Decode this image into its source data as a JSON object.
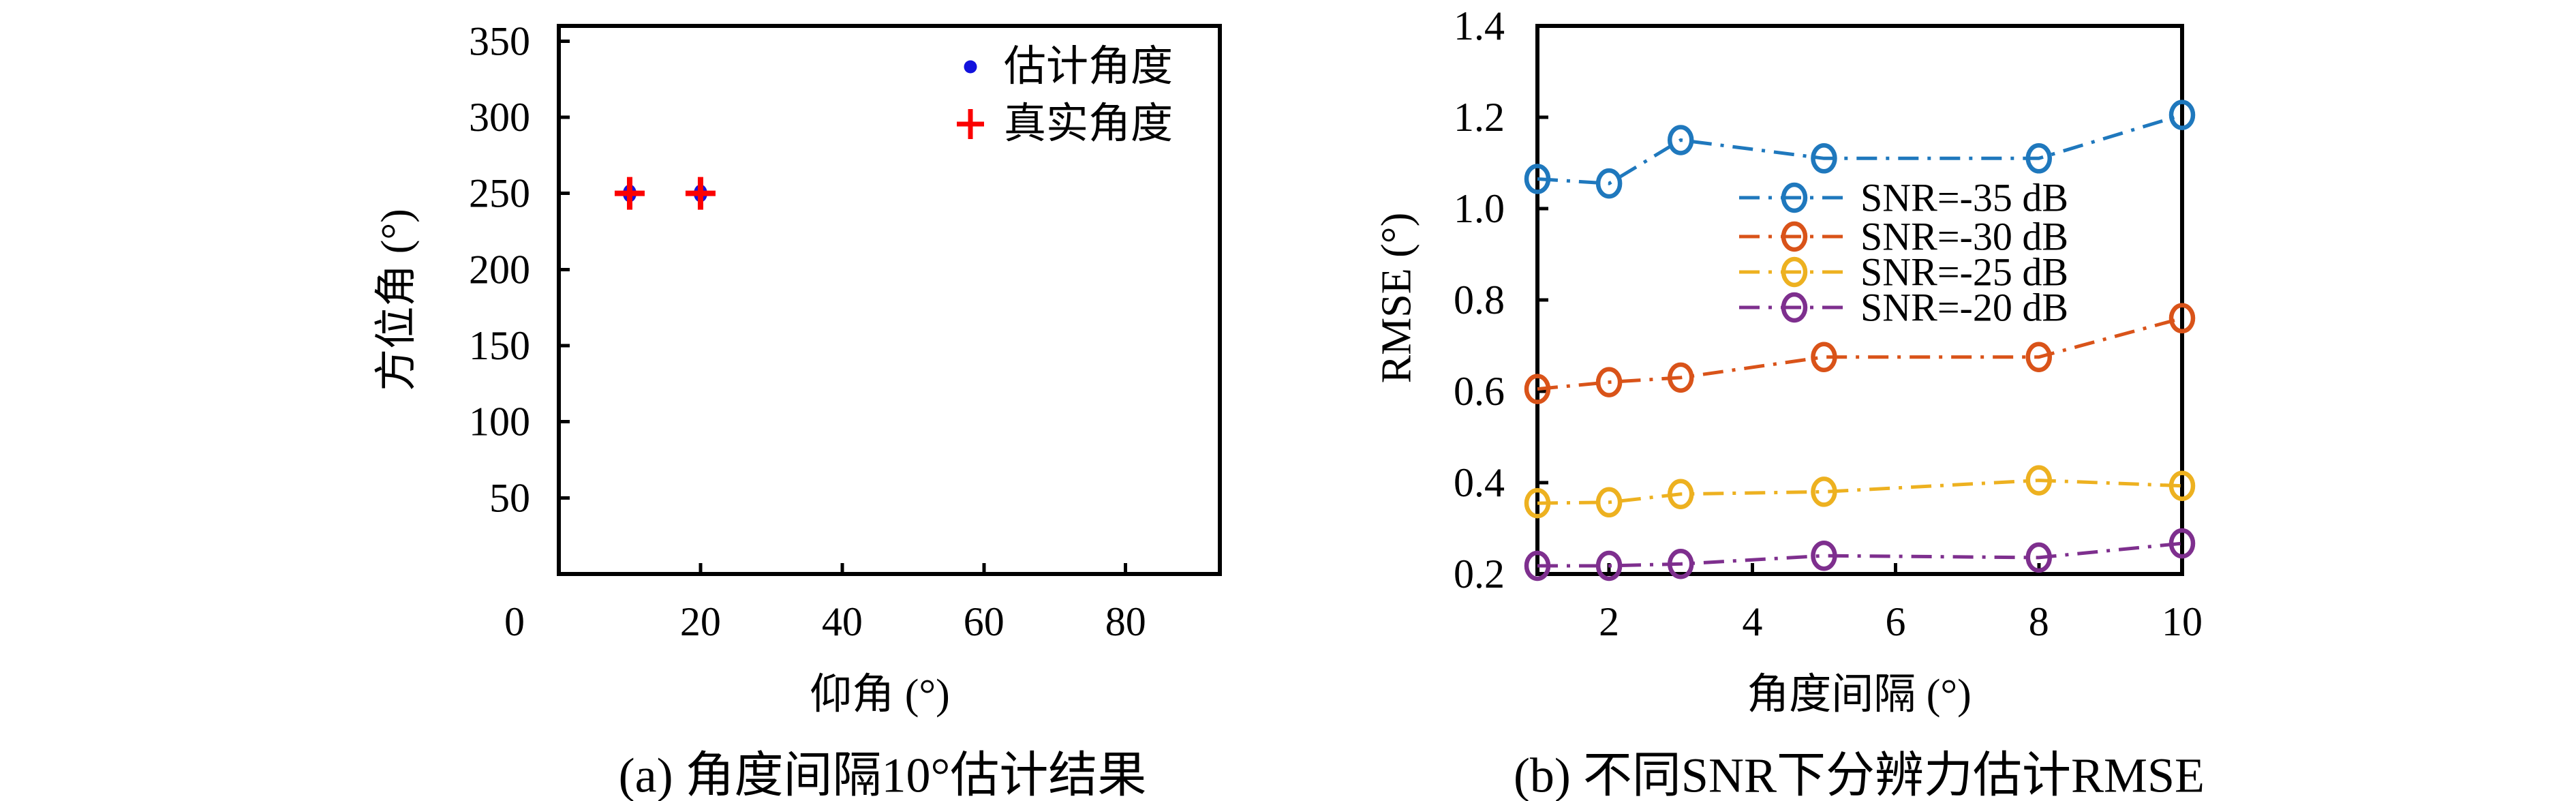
{
  "figure": {
    "background_color": "#ffffff",
    "text_color": "#000000"
  },
  "chart_data": [
    {
      "id": "a",
      "type": "scatter",
      "caption": "(a) 角度间隔10°估计结果",
      "xlabel": "仰角 (°)",
      "ylabel": "方位角 (°)",
      "xlim": [
        0,
        93.3
      ],
      "ylim": [
        0,
        360
      ],
      "xticks": [
        0,
        20,
        40,
        60,
        80
      ],
      "xticklabels": [
        "0",
        "20",
        "40",
        "60",
        "80"
      ],
      "yticks": [
        50,
        100,
        150,
        200,
        250,
        300,
        350
      ],
      "yticklabels": [
        "50",
        "100",
        "150",
        "200",
        "250",
        "300",
        "350"
      ],
      "grid": false,
      "legend_position": "upper right inside, no frame",
      "series": [
        {
          "name": "估计角度",
          "marker": "dot",
          "color": "#1212dd",
          "x": [
            10,
            20
          ],
          "y": [
            250,
            250
          ]
        },
        {
          "name": "真实角度",
          "marker": "plus",
          "color": "#fb0101",
          "x": [
            10,
            20
          ],
          "y": [
            250,
            250
          ]
        }
      ]
    },
    {
      "id": "b",
      "type": "line",
      "caption": "(b) 不同SNR下分辨力估计RMSE",
      "xlabel": "角度间隔 (°)",
      "ylabel": "RMSE (°)",
      "xlim": [
        1,
        10
      ],
      "ylim": [
        0.2,
        1.4
      ],
      "xticks": [
        2,
        4,
        6,
        8,
        10
      ],
      "xticklabels": [
        "2",
        "4",
        "6",
        "8",
        "10"
      ],
      "yticks": [
        0.2,
        0.4,
        0.6,
        0.8,
        1.0,
        1.2,
        1.4
      ],
      "yticklabels": [
        "0.2",
        "0.4",
        "0.6",
        "0.8",
        "1.0",
        "1.2",
        "1.4"
      ],
      "grid": false,
      "line_style": "dash-dot",
      "marker": "open-circle",
      "legend_position": "center inside, no frame",
      "x": [
        1,
        2,
        3,
        5,
        8,
        10
      ],
      "series": [
        {
          "name": "SNR=-35 dB",
          "color": "#1f78bd",
          "values": [
            1.065,
            1.055,
            1.15,
            1.11,
            1.11,
            1.205
          ]
        },
        {
          "name": "SNR=-30 dB",
          "color": "#d95319",
          "values": [
            0.605,
            0.62,
            0.63,
            0.675,
            0.675,
            0.76
          ]
        },
        {
          "name": "SNR=-25 dB",
          "color": "#edb120",
          "values": [
            0.355,
            0.357,
            0.375,
            0.38,
            0.405,
            0.393
          ]
        },
        {
          "name": "SNR=-20 dB",
          "color": "#7e2f8e",
          "values": [
            0.218,
            0.218,
            0.222,
            0.24,
            0.236,
            0.267
          ]
        }
      ]
    }
  ]
}
